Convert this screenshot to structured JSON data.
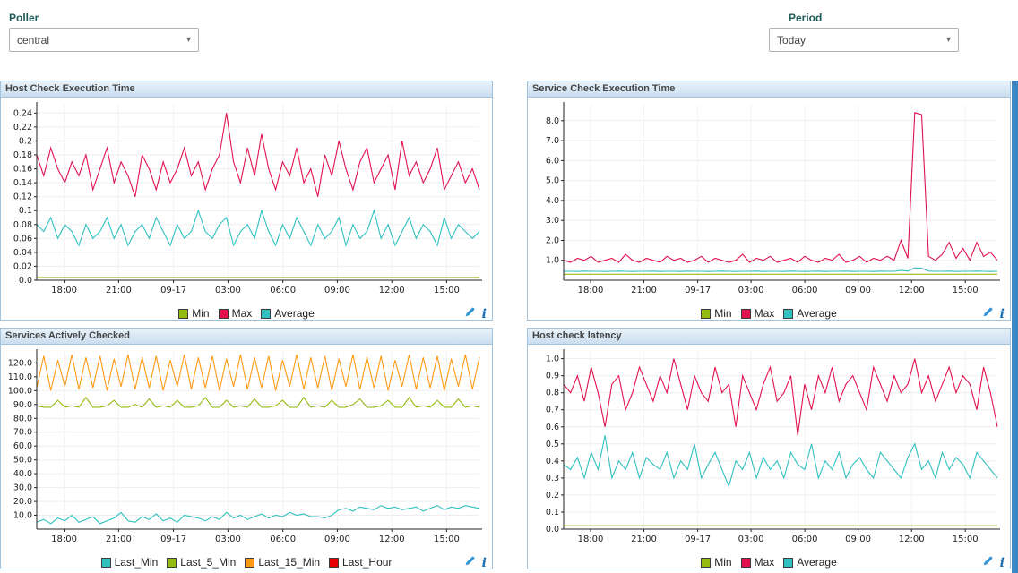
{
  "controls": {
    "poller_label": "Poller",
    "poller_value": "central",
    "period_label": "Period",
    "period_value": "Today",
    "dropdown_arrow": "▾"
  },
  "icons": {
    "info": "i"
  },
  "chart_data": [
    {
      "type": "line",
      "title": "Host Check Execution Time",
      "ylim": [
        0,
        0.252
      ],
      "yticks": [
        [
          0,
          "0.0"
        ],
        [
          0.02,
          "0.02"
        ],
        [
          0.04,
          "0.04"
        ],
        [
          0.06,
          "0.06"
        ],
        [
          0.08,
          "0.08"
        ],
        [
          0.1,
          "0.1"
        ],
        [
          0.12,
          "0.12"
        ],
        [
          0.14,
          "0.14"
        ],
        [
          0.16,
          "0.16"
        ],
        [
          0.18,
          "0.18"
        ],
        [
          0.2,
          "0.2"
        ],
        [
          0.22,
          "0.22"
        ],
        [
          0.24,
          "0.24"
        ]
      ],
      "xticks": [
        [
          0.062,
          "18:00"
        ],
        [
          0.185,
          "21:00"
        ],
        [
          0.309,
          "09-17"
        ],
        [
          0.432,
          "03:00"
        ],
        [
          0.556,
          "06:00"
        ],
        [
          0.679,
          "09:00"
        ],
        [
          0.802,
          "12:00"
        ],
        [
          0.926,
          "15:00"
        ]
      ],
      "series": [
        {
          "name": "Min",
          "color": "#94bb0f",
          "values": [
            0.004,
            0.004
          ]
        },
        {
          "name": "Max",
          "color": "#e2114d",
          "values": [
            0.18,
            0.15,
            0.19,
            0.16,
            0.14,
            0.17,
            0.15,
            0.18,
            0.13,
            0.16,
            0.19,
            0.14,
            0.17,
            0.15,
            0.12,
            0.18,
            0.16,
            0.13,
            0.17,
            0.14,
            0.16,
            0.19,
            0.15,
            0.17,
            0.13,
            0.16,
            0.18,
            0.24,
            0.17,
            0.14,
            0.19,
            0.15,
            0.21,
            0.16,
            0.13,
            0.17,
            0.15,
            0.19,
            0.14,
            0.16,
            0.12,
            0.18,
            0.15,
            0.2,
            0.16,
            0.13,
            0.17,
            0.19,
            0.14,
            0.16,
            0.18,
            0.13,
            0.2,
            0.15,
            0.17,
            0.14,
            0.16,
            0.19,
            0.13,
            0.15,
            0.17,
            0.14,
            0.16,
            0.13
          ]
        },
        {
          "name": "Average",
          "color": "#30c0c0",
          "values": [
            0.08,
            0.07,
            0.09,
            0.06,
            0.08,
            0.07,
            0.05,
            0.08,
            0.06,
            0.07,
            0.09,
            0.06,
            0.08,
            0.05,
            0.07,
            0.08,
            0.06,
            0.09,
            0.07,
            0.05,
            0.08,
            0.06,
            0.07,
            0.1,
            0.07,
            0.06,
            0.08,
            0.09,
            0.05,
            0.07,
            0.08,
            0.06,
            0.1,
            0.07,
            0.05,
            0.08,
            0.06,
            0.09,
            0.07,
            0.05,
            0.08,
            0.06,
            0.07,
            0.09,
            0.05,
            0.08,
            0.06,
            0.07,
            0.1,
            0.06,
            0.08,
            0.05,
            0.07,
            0.09,
            0.06,
            0.08,
            0.07,
            0.05,
            0.09,
            0.06,
            0.08,
            0.07,
            0.06,
            0.07
          ]
        }
      ]
    },
    {
      "type": "line",
      "title": "Service Check Execution Time",
      "ylim": [
        0,
        8.8
      ],
      "yticks": [
        [
          1,
          "1.0"
        ],
        [
          2,
          "2.0"
        ],
        [
          3,
          "3.0"
        ],
        [
          4,
          "4.0"
        ],
        [
          5,
          "5.0"
        ],
        [
          6,
          "6.0"
        ],
        [
          7,
          "7.0"
        ],
        [
          8,
          "8.0"
        ]
      ],
      "xticks": [
        [
          0.062,
          "18:00"
        ],
        [
          0.185,
          "21:00"
        ],
        [
          0.309,
          "09-17"
        ],
        [
          0.432,
          "03:00"
        ],
        [
          0.556,
          "06:00"
        ],
        [
          0.679,
          "09:00"
        ],
        [
          0.802,
          "12:00"
        ],
        [
          0.926,
          "15:00"
        ]
      ],
      "series": [
        {
          "name": "Min",
          "color": "#94bb0f",
          "values": [
            0.3,
            0.3
          ]
        },
        {
          "name": "Max",
          "color": "#e2114d",
          "values": [
            1.0,
            0.9,
            1.1,
            1.0,
            1.2,
            0.9,
            1.0,
            1.1,
            0.9,
            1.3,
            1.0,
            0.9,
            1.1,
            1.0,
            0.9,
            1.2,
            1.0,
            1.1,
            0.9,
            1.0,
            1.2,
            0.9,
            1.1,
            1.0,
            0.9,
            1.0,
            1.3,
            0.9,
            1.1,
            1.0,
            1.2,
            0.9,
            1.0,
            1.1,
            0.9,
            1.2,
            1.0,
            0.9,
            1.1,
            1.0,
            1.3,
            0.9,
            1.0,
            1.2,
            0.9,
            1.1,
            1.0,
            1.2,
            1.0,
            2.0,
            1.1,
            8.4,
            8.3,
            1.2,
            1.0,
            1.3,
            1.9,
            1.1,
            1.6,
            1.0,
            1.9,
            1.2,
            1.4,
            1.0
          ]
        },
        {
          "name": "Average",
          "color": "#30c0c0",
          "values": [
            0.45,
            0.45,
            0.44,
            0.46,
            0.45,
            0.45,
            0.44,
            0.45,
            0.46,
            0.45,
            0.44,
            0.45,
            0.45,
            0.46,
            0.44,
            0.45,
            0.45,
            0.44,
            0.46,
            0.45,
            0.45,
            0.44,
            0.45,
            0.46,
            0.45,
            0.44,
            0.45,
            0.45,
            0.46,
            0.44,
            0.45,
            0.45,
            0.44,
            0.46,
            0.45,
            0.44,
            0.45,
            0.46,
            0.44,
            0.45,
            0.45,
            0.46,
            0.44,
            0.45,
            0.45,
            0.44,
            0.46,
            0.45,
            0.45,
            0.5,
            0.46,
            0.62,
            0.6,
            0.46,
            0.45,
            0.45,
            0.46,
            0.44,
            0.45,
            0.45,
            0.46,
            0.45,
            0.44,
            0.45
          ]
        }
      ]
    },
    {
      "type": "line",
      "title": "Services Actively Checked",
      "ylim": [
        0,
        128
      ],
      "yticks": [
        [
          10,
          "10.0"
        ],
        [
          20,
          "20.0"
        ],
        [
          30,
          "30.0"
        ],
        [
          40,
          "40.0"
        ],
        [
          50,
          "50.0"
        ],
        [
          60,
          "60.0"
        ],
        [
          70,
          "70.0"
        ],
        [
          80,
          "80.0"
        ],
        [
          90,
          "90.0"
        ],
        [
          100,
          "100.0"
        ],
        [
          110,
          "110.0"
        ],
        [
          120,
          "120.0"
        ]
      ],
      "xticks": [
        [
          0.062,
          "18:00"
        ],
        [
          0.185,
          "21:00"
        ],
        [
          0.309,
          "09-17"
        ],
        [
          0.432,
          "03:00"
        ],
        [
          0.556,
          "06:00"
        ],
        [
          0.679,
          "09:00"
        ],
        [
          0.802,
          "12:00"
        ],
        [
          0.926,
          "15:00"
        ]
      ],
      "series": [
        {
          "name": "Last_Min",
          "color": "#30c0c0",
          "values": [
            5,
            7,
            4,
            8,
            6,
            10,
            5,
            7,
            9,
            4,
            6,
            8,
            12,
            6,
            5,
            9,
            7,
            11,
            6,
            8,
            5,
            10,
            9,
            8,
            6,
            9,
            7,
            12,
            8,
            10,
            7,
            9,
            11,
            8,
            10,
            9,
            12,
            10,
            11,
            9,
            9,
            8,
            10,
            14,
            15,
            13,
            16,
            15,
            14,
            17,
            15,
            16,
            14,
            15,
            16,
            13,
            15,
            17,
            14,
            16,
            15,
            17,
            16,
            15
          ]
        },
        {
          "name": "Last_5_Min",
          "color": "#94bb0f",
          "values": [
            89,
            88,
            88,
            93,
            88,
            89,
            88,
            95,
            88,
            88,
            89,
            93,
            88,
            88,
            90,
            88,
            94,
            88,
            89,
            88,
            93,
            88,
            88,
            89,
            95,
            88,
            88,
            93,
            88,
            89,
            88,
            94,
            88,
            88,
            89,
            93,
            88,
            88,
            95,
            88,
            89,
            88,
            93,
            88,
            88,
            90,
            94,
            88,
            88,
            89,
            93,
            88,
            88,
            95,
            88,
            89,
            88,
            93,
            88,
            88,
            94,
            88,
            89,
            88
          ]
        },
        {
          "name": "Last_15_Min",
          "color": "#ff9a13",
          "values": [
            102,
            125,
            100,
            122,
            103,
            126,
            101,
            124,
            102,
            125,
            100,
            123,
            103,
            126,
            101,
            124,
            102,
            125,
            100,
            122,
            103,
            126,
            101,
            124,
            102,
            125,
            100,
            123,
            103,
            126,
            101,
            124,
            102,
            125,
            100,
            122,
            103,
            126,
            101,
            124,
            102,
            125,
            100,
            123,
            103,
            126,
            101,
            124,
            102,
            125,
            100,
            122,
            103,
            126,
            101,
            124,
            102,
            125,
            100,
            123,
            103,
            126,
            101,
            124
          ]
        },
        {
          "name": "Last_Hour",
          "color": "#e70000",
          "values": []
        }
      ]
    },
    {
      "type": "line",
      "title": "Host check latency",
      "ylim": [
        0,
        1.04
      ],
      "yticks": [
        [
          0,
          "0.0"
        ],
        [
          0.1,
          "0.1"
        ],
        [
          0.2,
          "0.2"
        ],
        [
          0.3,
          "0.3"
        ],
        [
          0.4,
          "0.4"
        ],
        [
          0.5,
          "0.5"
        ],
        [
          0.6,
          "0.6"
        ],
        [
          0.7,
          "0.7"
        ],
        [
          0.8,
          "0.8"
        ],
        [
          0.9,
          "0.9"
        ],
        [
          1,
          "1.0"
        ]
      ],
      "xticks": [
        [
          0.062,
          "18:00"
        ],
        [
          0.185,
          "21:00"
        ],
        [
          0.309,
          "09-17"
        ],
        [
          0.432,
          "03:00"
        ],
        [
          0.556,
          "06:00"
        ],
        [
          0.679,
          "09:00"
        ],
        [
          0.802,
          "12:00"
        ],
        [
          0.926,
          "15:00"
        ]
      ],
      "series": [
        {
          "name": "Min",
          "color": "#94bb0f",
          "values": [
            0.02,
            0.02
          ]
        },
        {
          "name": "Max",
          "color": "#e2114d",
          "values": [
            0.85,
            0.8,
            0.9,
            0.75,
            0.95,
            0.8,
            0.6,
            0.85,
            0.9,
            0.7,
            0.8,
            0.95,
            0.85,
            0.75,
            0.9,
            0.8,
            1.0,
            0.85,
            0.7,
            0.9,
            0.8,
            0.75,
            0.95,
            0.8,
            0.85,
            0.6,
            0.9,
            0.8,
            0.7,
            0.85,
            0.95,
            0.75,
            0.8,
            0.9,
            0.55,
            0.85,
            0.7,
            0.9,
            0.8,
            0.95,
            0.75,
            0.85,
            0.9,
            0.8,
            0.7,
            0.95,
            0.85,
            0.75,
            0.9,
            0.8,
            0.85,
            1.0,
            0.8,
            0.9,
            0.75,
            0.85,
            0.95,
            0.8,
            0.9,
            0.85,
            0.7,
            0.95,
            0.8,
            0.6
          ]
        },
        {
          "name": "Average",
          "color": "#30c0c0",
          "values": [
            0.38,
            0.35,
            0.42,
            0.3,
            0.45,
            0.35,
            0.55,
            0.3,
            0.4,
            0.35,
            0.45,
            0.3,
            0.42,
            0.38,
            0.35,
            0.45,
            0.3,
            0.4,
            0.35,
            0.5,
            0.3,
            0.38,
            0.45,
            0.35,
            0.25,
            0.4,
            0.35,
            0.45,
            0.3,
            0.42,
            0.35,
            0.4,
            0.3,
            0.45,
            0.38,
            0.35,
            0.5,
            0.3,
            0.4,
            0.35,
            0.45,
            0.3,
            0.38,
            0.42,
            0.35,
            0.3,
            0.45,
            0.4,
            0.35,
            0.3,
            0.42,
            0.5,
            0.35,
            0.4,
            0.3,
            0.45,
            0.35,
            0.42,
            0.38,
            0.3,
            0.45,
            0.4,
            0.35,
            0.3
          ]
        }
      ]
    }
  ]
}
